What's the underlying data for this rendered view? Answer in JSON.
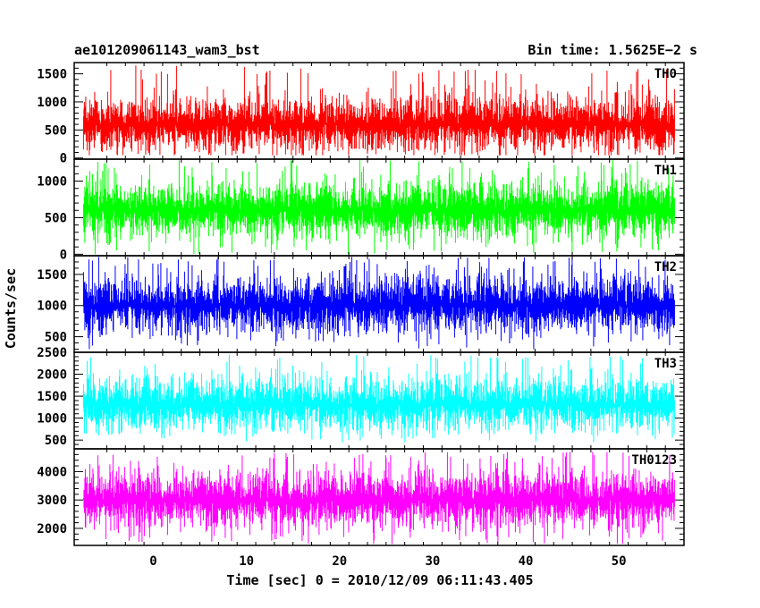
{
  "header": {
    "title": "ae101209061143_wam3_bst",
    "bin_time": "Bin time: 1.5625E−2 s"
  },
  "chart_data": {
    "type": "line",
    "xlabel": "Time [sec] 0 = 2010/12/09 06:11:43.405",
    "ylabel": "Counts/sec",
    "xlim": [
      -8.5,
      57
    ],
    "x_ticks": [
      0,
      10,
      20,
      30,
      40,
      50
    ],
    "x_range_data": [
      -7.5,
      56
    ],
    "bin_time_s": 0.015625,
    "series": [
      {
        "name": "TH0",
        "color": "#ff0000",
        "ylim": [
          -20,
          1700
        ],
        "y_ticks": [
          0,
          500,
          1000,
          1500
        ],
        "level_mean": 600,
        "level_min": 50,
        "level_max": 1650
      },
      {
        "name": "TH1",
        "color": "#00ff00",
        "ylim": [
          -20,
          1300
        ],
        "y_ticks": [
          0,
          500,
          1000
        ],
        "level_mean": 600,
        "level_min": 0,
        "level_max": 1290
      },
      {
        "name": "TH2",
        "color": "#0000ff",
        "ylim": [
          250,
          1800
        ],
        "y_ticks": [
          500,
          1000,
          1500
        ],
        "level_mean": 1000,
        "level_min": 300,
        "level_max": 1780
      },
      {
        "name": "TH3",
        "color": "#00ffff",
        "ylim": [
          300,
          2500
        ],
        "y_ticks": [
          500,
          1000,
          1500,
          2000,
          2500
        ],
        "level_mean": 1300,
        "level_min": 450,
        "level_max": 2450
      },
      {
        "name": "TH0123",
        "color": "#ff00ff",
        "ylim": [
          1400,
          4800
        ],
        "y_ticks": [
          2000,
          3000,
          4000
        ],
        "level_mean": 3000,
        "level_min": 1450,
        "level_max": 4700
      }
    ]
  }
}
